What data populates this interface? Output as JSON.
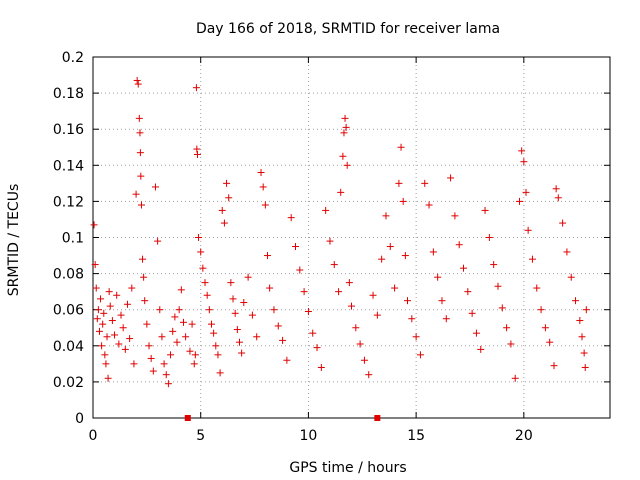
{
  "chart_data": {
    "type": "scatter",
    "title": "Day 166 of 2018, SRMTID for receiver lama",
    "xlabel": "GPS time / hours",
    "ylabel": "SRMTID / TECUs",
    "xlim": [
      0,
      24
    ],
    "ylim": [
      0,
      0.2
    ],
    "xticks": [
      0,
      5,
      10,
      15,
      20
    ],
    "xtick_labels": [
      "0",
      "5",
      "10",
      "15",
      "20"
    ],
    "yticks": [
      0,
      0.02,
      0.04,
      0.06,
      0.08,
      0.1,
      0.12,
      0.14,
      0.16,
      0.18,
      0.2
    ],
    "ytick_labels": [
      "0",
      "0.02",
      "0.04",
      "0.06",
      "0.08",
      "0.1",
      "0.12",
      "0.14",
      "0.16",
      "0.18",
      "0.2"
    ],
    "grid": true,
    "marker": "+",
    "series_color": "#e00000",
    "series": [
      {
        "name": "SRMTID",
        "points": [
          [
            0.05,
            0.107
          ],
          [
            0.1,
            0.085
          ],
          [
            0.15,
            0.072
          ],
          [
            0.2,
            0.055
          ],
          [
            0.25,
            0.06
          ],
          [
            0.3,
            0.048
          ],
          [
            0.35,
            0.066
          ],
          [
            0.4,
            0.04
          ],
          [
            0.45,
            0.052
          ],
          [
            0.5,
            0.058
          ],
          [
            0.55,
            0.035
          ],
          [
            0.6,
            0.03
          ],
          [
            0.65,
            0.045
          ],
          [
            0.7,
            0.022
          ],
          [
            0.75,
            0.07
          ],
          [
            0.8,
            0.062
          ],
          [
            0.9,
            0.054
          ],
          [
            1.0,
            0.046
          ],
          [
            1.1,
            0.068
          ],
          [
            1.2,
            0.041
          ],
          [
            1.3,
            0.057
          ],
          [
            1.4,
            0.05
          ],
          [
            1.5,
            0.038
          ],
          [
            1.6,
            0.063
          ],
          [
            1.7,
            0.044
          ],
          [
            1.8,
            0.072
          ],
          [
            1.9,
            0.03
          ],
          [
            2.0,
            0.124
          ],
          [
            2.05,
            0.187
          ],
          [
            2.1,
            0.185
          ],
          [
            2.15,
            0.166
          ],
          [
            2.18,
            0.158
          ],
          [
            2.2,
            0.147
          ],
          [
            2.22,
            0.134
          ],
          [
            2.25,
            0.118
          ],
          [
            2.3,
            0.088
          ],
          [
            2.35,
            0.078
          ],
          [
            2.4,
            0.065
          ],
          [
            2.5,
            0.052
          ],
          [
            2.6,
            0.04
          ],
          [
            2.7,
            0.033
          ],
          [
            2.8,
            0.026
          ],
          [
            2.9,
            0.128
          ],
          [
            3.0,
            0.098
          ],
          [
            3.1,
            0.06
          ],
          [
            3.2,
            0.045
          ],
          [
            3.3,
            0.03
          ],
          [
            3.4,
            0.024
          ],
          [
            3.5,
            0.019
          ],
          [
            3.6,
            0.035
          ],
          [
            3.7,
            0.048
          ],
          [
            3.8,
            0.056
          ],
          [
            3.9,
            0.042
          ],
          [
            4.0,
            0.06
          ],
          [
            4.1,
            0.071
          ],
          [
            4.2,
            0.053
          ],
          [
            4.3,
            0.045
          ],
          [
            4.5,
            0.037
          ],
          [
            4.6,
            0.052
          ],
          [
            4.7,
            0.03
          ],
          [
            4.75,
            0.035
          ],
          [
            4.8,
            0.183
          ],
          [
            4.82,
            0.149
          ],
          [
            4.85,
            0.146
          ],
          [
            4.9,
            0.1
          ],
          [
            5.0,
            0.092
          ],
          [
            5.1,
            0.083
          ],
          [
            5.2,
            0.075
          ],
          [
            5.3,
            0.068
          ],
          [
            5.4,
            0.06
          ],
          [
            5.5,
            0.052
          ],
          [
            5.6,
            0.047
          ],
          [
            5.7,
            0.04
          ],
          [
            5.8,
            0.035
          ],
          [
            5.9,
            0.025
          ],
          [
            6.0,
            0.115
          ],
          [
            6.1,
            0.108
          ],
          [
            6.2,
            0.13
          ],
          [
            6.3,
            0.122
          ],
          [
            6.4,
            0.075
          ],
          [
            6.5,
            0.066
          ],
          [
            6.6,
            0.058
          ],
          [
            6.7,
            0.049
          ],
          [
            6.8,
            0.042
          ],
          [
            6.9,
            0.036
          ],
          [
            7.0,
            0.064
          ],
          [
            7.2,
            0.078
          ],
          [
            7.4,
            0.057
          ],
          [
            7.6,
            0.045
          ],
          [
            7.8,
            0.136
          ],
          [
            7.9,
            0.128
          ],
          [
            8.0,
            0.118
          ],
          [
            8.1,
            0.09
          ],
          [
            8.2,
            0.072
          ],
          [
            8.4,
            0.06
          ],
          [
            8.6,
            0.051
          ],
          [
            8.8,
            0.043
          ],
          [
            9.0,
            0.032
          ],
          [
            9.2,
            0.111
          ],
          [
            9.4,
            0.095
          ],
          [
            9.6,
            0.082
          ],
          [
            9.8,
            0.07
          ],
          [
            10.0,
            0.059
          ],
          [
            10.2,
            0.047
          ],
          [
            10.4,
            0.039
          ],
          [
            10.6,
            0.028
          ],
          [
            10.8,
            0.115
          ],
          [
            11.0,
            0.098
          ],
          [
            11.2,
            0.085
          ],
          [
            11.4,
            0.07
          ],
          [
            11.5,
            0.125
          ],
          [
            11.6,
            0.145
          ],
          [
            11.65,
            0.158
          ],
          [
            11.7,
            0.166
          ],
          [
            11.75,
            0.161
          ],
          [
            11.8,
            0.14
          ],
          [
            11.9,
            0.075
          ],
          [
            12.0,
            0.062
          ],
          [
            12.2,
            0.05
          ],
          [
            12.4,
            0.041
          ],
          [
            12.6,
            0.032
          ],
          [
            12.8,
            0.024
          ],
          [
            13.0,
            0.068
          ],
          [
            13.2,
            0.057
          ],
          [
            13.4,
            0.088
          ],
          [
            13.6,
            0.112
          ],
          [
            13.8,
            0.095
          ],
          [
            14.0,
            0.072
          ],
          [
            14.2,
            0.13
          ],
          [
            14.3,
            0.15
          ],
          [
            14.4,
            0.12
          ],
          [
            14.5,
            0.09
          ],
          [
            14.6,
            0.065
          ],
          [
            14.8,
            0.055
          ],
          [
            15.0,
            0.045
          ],
          [
            15.2,
            0.035
          ],
          [
            15.4,
            0.13
          ],
          [
            15.6,
            0.118
          ],
          [
            15.8,
            0.092
          ],
          [
            16.0,
            0.078
          ],
          [
            16.2,
            0.065
          ],
          [
            16.4,
            0.055
          ],
          [
            16.6,
            0.133
          ],
          [
            16.8,
            0.112
          ],
          [
            17.0,
            0.096
          ],
          [
            17.2,
            0.083
          ],
          [
            17.4,
            0.07
          ],
          [
            17.6,
            0.058
          ],
          [
            17.8,
            0.047
          ],
          [
            18.0,
            0.038
          ],
          [
            18.2,
            0.115
          ],
          [
            18.4,
            0.1
          ],
          [
            18.6,
            0.085
          ],
          [
            18.8,
            0.073
          ],
          [
            19.0,
            0.061
          ],
          [
            19.2,
            0.05
          ],
          [
            19.4,
            0.041
          ],
          [
            19.6,
            0.022
          ],
          [
            19.8,
            0.12
          ],
          [
            19.9,
            0.148
          ],
          [
            20.0,
            0.142
          ],
          [
            20.1,
            0.125
          ],
          [
            20.2,
            0.104
          ],
          [
            20.4,
            0.088
          ],
          [
            20.6,
            0.072
          ],
          [
            20.8,
            0.06
          ],
          [
            21.0,
            0.05
          ],
          [
            21.2,
            0.042
          ],
          [
            21.4,
            0.029
          ],
          [
            21.5,
            0.127
          ],
          [
            21.6,
            0.122
          ],
          [
            21.8,
            0.108
          ],
          [
            22.0,
            0.092
          ],
          [
            22.2,
            0.078
          ],
          [
            22.4,
            0.065
          ],
          [
            22.6,
            0.054
          ],
          [
            22.7,
            0.045
          ],
          [
            22.8,
            0.036
          ],
          [
            22.85,
            0.028
          ],
          [
            22.9,
            0.06
          ]
        ]
      }
    ],
    "marker_squares": [
      4.4,
      13.2
    ]
  }
}
